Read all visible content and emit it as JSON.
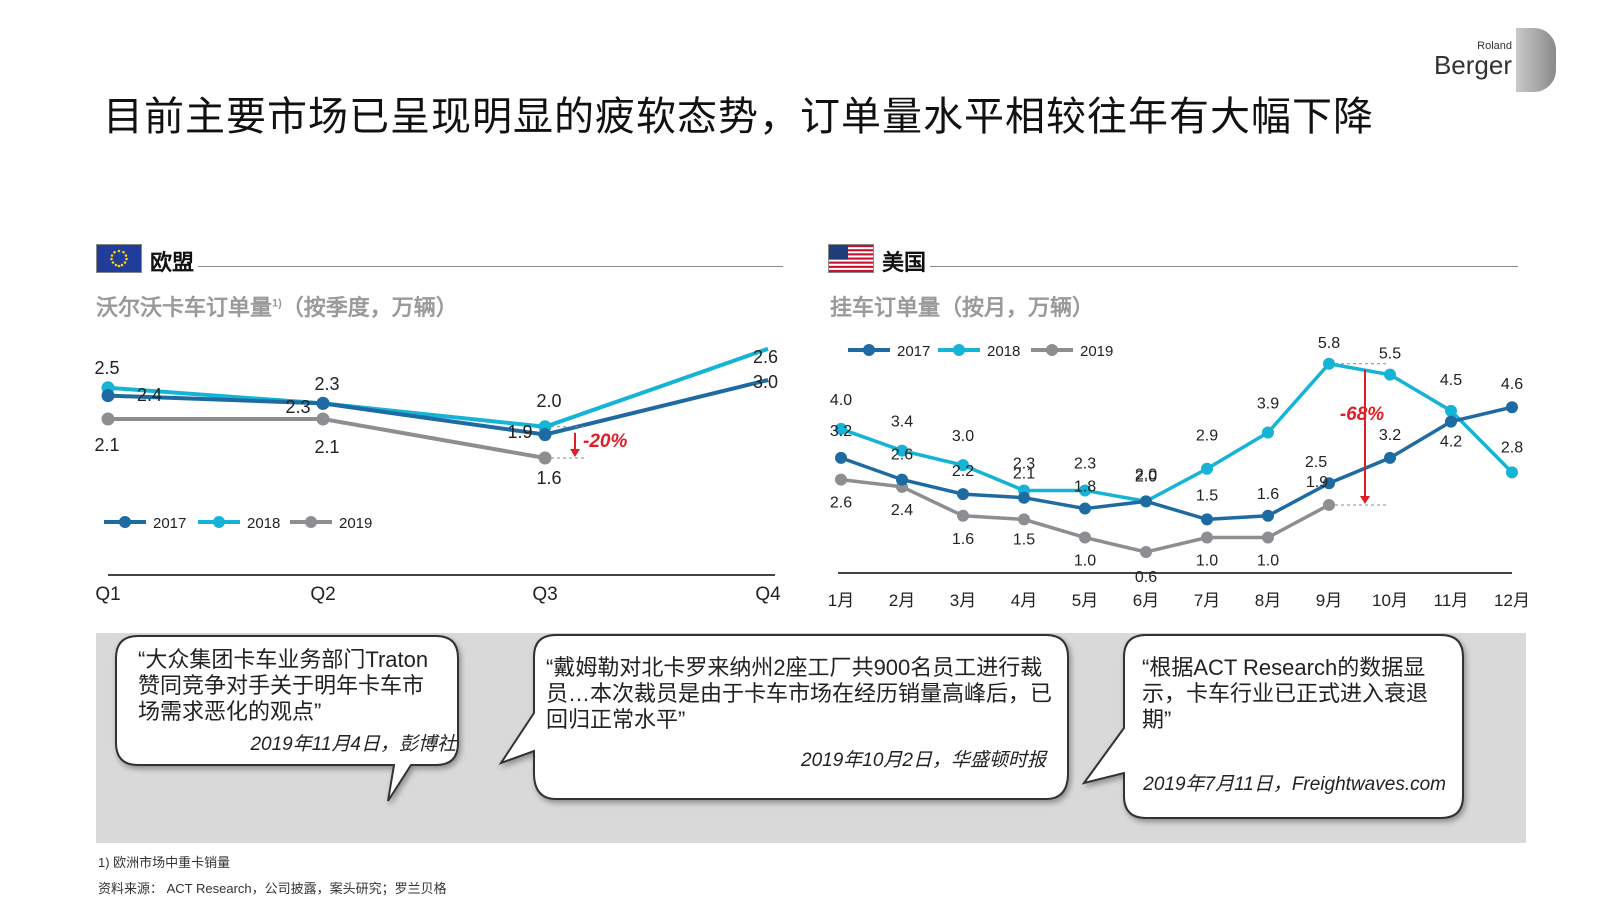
{
  "title": "目前主要市场已呈现明显的疲软态势，订单量水平相较往年有大幅下降",
  "logo": {
    "line1": "Roland",
    "line2": "Berger"
  },
  "colors": {
    "2017": "#1e6aa2",
    "2018": "#15b4d6",
    "2019": "#8c8e91",
    "drop": "#e21d25"
  },
  "eu": {
    "region": "欧盟",
    "subtitle": "沃尔沃卡车订单量",
    "footnote_ref": "1)",
    "subtitle_tail": "（按季度，万辆）"
  },
  "us": {
    "region": "美国",
    "subtitle": "挂车订单量（按月，万辆）"
  },
  "chart_data": [
    {
      "type": "line",
      "categories": [
        "Q1",
        "Q2",
        "Q3",
        "Q4"
      ],
      "series": [
        {
          "name": "2017",
          "values": [
            2.4,
            2.3,
            1.9,
            2.6
          ]
        },
        {
          "name": "2018",
          "values": [
            2.5,
            2.3,
            2.0,
            3.0
          ]
        },
        {
          "name": "2019",
          "values": [
            2.1,
            2.1,
            1.6,
            null
          ]
        }
      ],
      "annotation": "-20%",
      "legend": "bottom-left"
    },
    {
      "type": "line",
      "categories": [
        "1月",
        "2月",
        "3月",
        "4月",
        "5月",
        "6月",
        "7月",
        "8月",
        "9月",
        "10月",
        "11月",
        "12月"
      ],
      "series": [
        {
          "name": "2017",
          "values": [
            3.2,
            2.6,
            2.2,
            2.1,
            1.8,
            2.0,
            1.5,
            1.6,
            2.5,
            3.2,
            4.2,
            4.6
          ]
        },
        {
          "name": "2018",
          "values": [
            4.0,
            3.4,
            3.0,
            2.3,
            2.3,
            2.0,
            2.9,
            3.9,
            5.8,
            5.5,
            4.5,
            2.8
          ]
        },
        {
          "name": "2019",
          "values": [
            2.6,
            2.4,
            1.6,
            1.5,
            1.0,
            0.6,
            1.0,
            1.0,
            1.9,
            null,
            null,
            null
          ]
        }
      ],
      "annotation": "-68%",
      "legend": "top-left"
    }
  ],
  "quotes": [
    {
      "text": "“大众集团卡车业务部门Traton赞同竞争对手关于明年卡车市场需求恶化的观点”",
      "source": "2019年11月4日，彭博社"
    },
    {
      "text": "“戴姆勒对北卡罗来纳州2座工厂共900名员工进行裁员…本次裁员是由于卡车市场在经历销量高峰后，已回归正常水平”",
      "source": "2019年10月2日，华盛顿时报"
    },
    {
      "text": "“根据ACT Research的数据显示，卡车行业已正式进入衰退期”",
      "source": "2019年7月11日，Freightwaves.com"
    }
  ],
  "footnotes": {
    "note1": "1) 欧洲市场中重卡销量",
    "source": "资料来源： ACT Research，公司披露，案头研究；罗兰贝格"
  }
}
